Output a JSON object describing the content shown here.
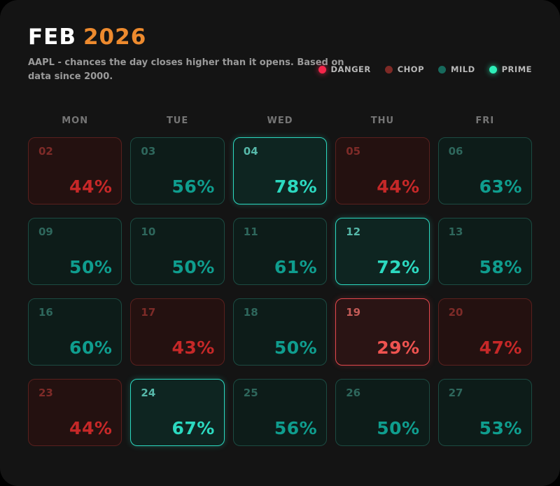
{
  "header": {
    "month": "FEB",
    "year": "2026",
    "subtitle": "AAPL - chances the day closes higher than it opens. Based on data since 2000.",
    "title_month_color": "#ffffff",
    "title_year_color": "#ed8a2e"
  },
  "legend": [
    {
      "label": "DANGER",
      "color": "#f5254a",
      "glow": "glow-red",
      "key": "danger"
    },
    {
      "label": "CHOP",
      "color": "#7e2a26",
      "glow": "",
      "key": "chop"
    },
    {
      "label": "MILD",
      "color": "#17695c",
      "glow": "",
      "key": "mild"
    },
    {
      "label": "PRIME",
      "color": "#2ef0b9",
      "glow": "glow-green",
      "key": "prime"
    }
  ],
  "weekdays": [
    "MON",
    "TUE",
    "WED",
    "THU",
    "FRI"
  ],
  "category_colors": {
    "danger": "#ef5350",
    "chop": "#c62828",
    "mild": "#0f9d8e",
    "prime": "#2cd9c0"
  },
  "chart_data": {
    "type": "heatmap",
    "title": "FEB 2026",
    "subtitle": "AAPL - chances the day closes higher than it opens. Based on data since 2000.",
    "columns": [
      "MON",
      "TUE",
      "WED",
      "THU",
      "FRI"
    ],
    "legend_position": "top-right",
    "categories_legend": [
      "DANGER",
      "CHOP",
      "MILD",
      "PRIME"
    ],
    "cells": [
      {
        "day": "02",
        "value": 44,
        "display": "44%",
        "category": "chop"
      },
      {
        "day": "03",
        "value": 56,
        "display": "56%",
        "category": "mild"
      },
      {
        "day": "04",
        "value": 78,
        "display": "78%",
        "category": "prime"
      },
      {
        "day": "05",
        "value": 44,
        "display": "44%",
        "category": "chop"
      },
      {
        "day": "06",
        "value": 63,
        "display": "63%",
        "category": "mild"
      },
      {
        "day": "09",
        "value": 50,
        "display": "50%",
        "category": "mild"
      },
      {
        "day": "10",
        "value": 50,
        "display": "50%",
        "category": "mild"
      },
      {
        "day": "11",
        "value": 61,
        "display": "61%",
        "category": "mild"
      },
      {
        "day": "12",
        "value": 72,
        "display": "72%",
        "category": "prime"
      },
      {
        "day": "13",
        "value": 58,
        "display": "58%",
        "category": "mild"
      },
      {
        "day": "16",
        "value": 60,
        "display": "60%",
        "category": "mild"
      },
      {
        "day": "17",
        "value": 43,
        "display": "43%",
        "category": "chop"
      },
      {
        "day": "18",
        "value": 50,
        "display": "50%",
        "category": "mild"
      },
      {
        "day": "19",
        "value": 29,
        "display": "29%",
        "category": "danger"
      },
      {
        "day": "20",
        "value": 47,
        "display": "47%",
        "category": "chop"
      },
      {
        "day": "23",
        "value": 44,
        "display": "44%",
        "category": "chop"
      },
      {
        "day": "24",
        "value": 67,
        "display": "67%",
        "category": "prime"
      },
      {
        "day": "25",
        "value": 56,
        "display": "56%",
        "category": "mild"
      },
      {
        "day": "26",
        "value": 50,
        "display": "50%",
        "category": "mild"
      },
      {
        "day": "27",
        "value": 53,
        "display": "53%",
        "category": "mild"
      }
    ]
  }
}
